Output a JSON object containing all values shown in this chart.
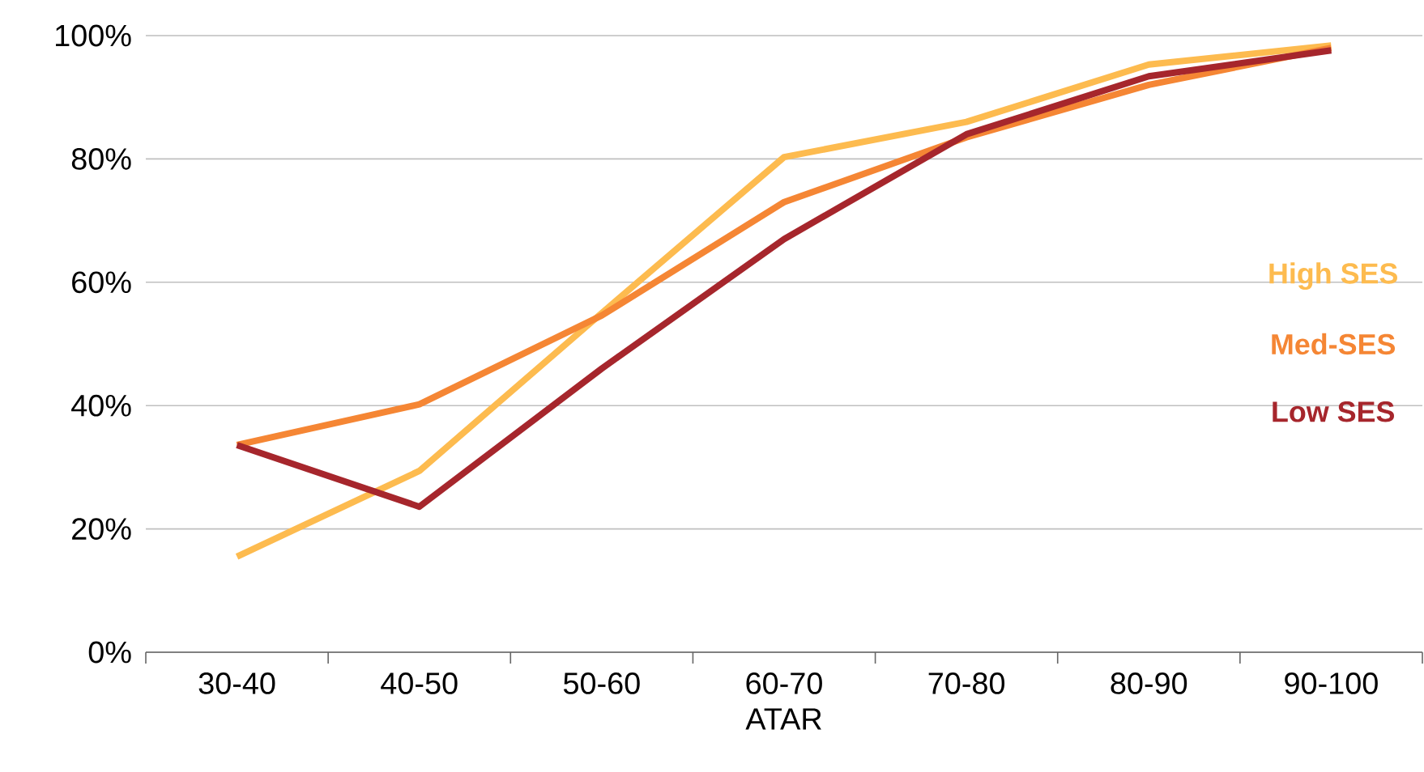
{
  "chart_data": {
    "type": "line",
    "xlabel": "ATAR",
    "categories": [
      "30-40",
      "40-50",
      "50-60",
      "60-70",
      "70-80",
      "80-90",
      "90-100"
    ],
    "series": [
      {
        "name": "High SES",
        "color": "#fdbb4f",
        "values": [
          15.5,
          29.4,
          55,
          80.3,
          86,
          95.3,
          98.4
        ]
      },
      {
        "name": "Med-SES",
        "color": "#f58634",
        "values": [
          33.6,
          40.2,
          54.6,
          73,
          83.5,
          92,
          98
        ]
      },
      {
        "name": "Low SES",
        "color": "#a6262c",
        "values": [
          33.6,
          23.6,
          46,
          67,
          84,
          93.4,
          97.6
        ]
      }
    ],
    "ylim": [
      0,
      100
    ],
    "yticks": [
      {
        "value": 0,
        "label": "0%"
      },
      {
        "value": 20,
        "label": "20%"
      },
      {
        "value": 40,
        "label": "40%"
      },
      {
        "value": 60,
        "label": "60%"
      },
      {
        "value": 80,
        "label": "80%"
      },
      {
        "value": 100,
        "label": "100%"
      }
    ],
    "grid": "y",
    "legend": "right",
    "marker": "none",
    "line_style": "solid"
  }
}
